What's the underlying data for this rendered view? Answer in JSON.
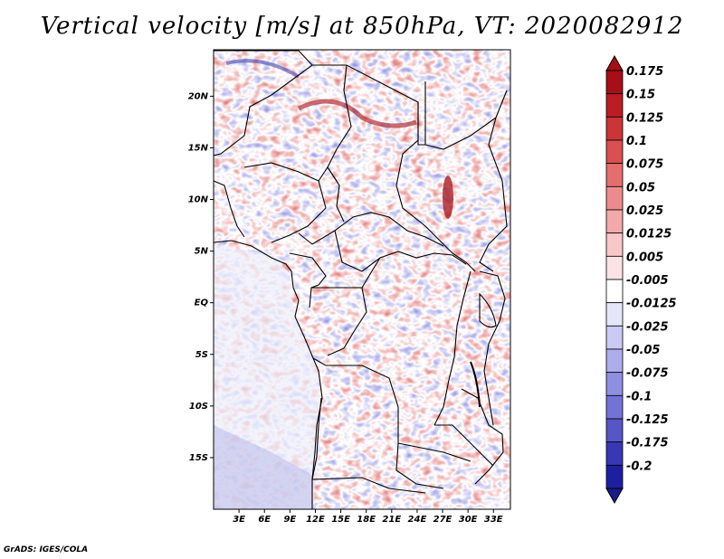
{
  "title": "Vertical velocity [m/s] at 850hPa, VT: 2020082912",
  "credit": "GrADS: IGES/COLA",
  "map": {
    "lon_range": [
      0,
      35
    ],
    "lat_range": [
      -20,
      24.5
    ],
    "lat_ticks": [
      {
        "value": 20,
        "label": "20N"
      },
      {
        "value": 15,
        "label": "15N"
      },
      {
        "value": 10,
        "label": "10N"
      },
      {
        "value": 5,
        "label": "5N"
      },
      {
        "value": 0,
        "label": "EQ"
      },
      {
        "value": -5,
        "label": "5S"
      },
      {
        "value": -10,
        "label": "10S"
      },
      {
        "value": -15,
        "label": "15S"
      }
    ],
    "lon_ticks": [
      {
        "value": 3,
        "label": "3E"
      },
      {
        "value": 6,
        "label": "6E"
      },
      {
        "value": 9,
        "label": "9E"
      },
      {
        "value": 12,
        "label": "12E"
      },
      {
        "value": 15,
        "label": "15E"
      },
      {
        "value": 18,
        "label": "18E"
      },
      {
        "value": 21,
        "label": "21E"
      },
      {
        "value": 24,
        "label": "24E"
      },
      {
        "value": 27,
        "label": "27E"
      },
      {
        "value": 30,
        "label": "30E"
      },
      {
        "value": 33,
        "label": "33E"
      }
    ]
  },
  "colorbar": {
    "levels": [
      {
        "label": "0.175",
        "color": "#a50f15"
      },
      {
        "label": "0.15",
        "color": "#bb1d22"
      },
      {
        "label": "0.125",
        "color": "#cb3535"
      },
      {
        "label": "0.1",
        "color": "#da4f4f"
      },
      {
        "label": "0.075",
        "color": "#e46e6e"
      },
      {
        "label": "0.05",
        "color": "#ec8b8b"
      },
      {
        "label": "0.025",
        "color": "#f3a9a9"
      },
      {
        "label": "0.0125",
        "color": "#f8c7c7"
      },
      {
        "label": "0.005",
        "color": "#fce3e3"
      },
      {
        "label": "-0.005",
        "color": "#ffffff"
      },
      {
        "label": "-0.0125",
        "color": "#e6e6fb"
      },
      {
        "label": "-0.025",
        "color": "#cacaf4"
      },
      {
        "label": "-0.05",
        "color": "#adadec"
      },
      {
        "label": "-0.075",
        "color": "#8f8fe2"
      },
      {
        "label": "-0.1",
        "color": "#7373d6"
      },
      {
        "label": "-0.125",
        "color": "#5656c8"
      },
      {
        "label": "-0.175",
        "color": "#3838b6"
      },
      {
        "label": "-0.2",
        "color": "#1e1ea0"
      }
    ],
    "top_triangle_color": "#a50f15",
    "bottom_triangle_color": "#1a1a8c"
  }
}
